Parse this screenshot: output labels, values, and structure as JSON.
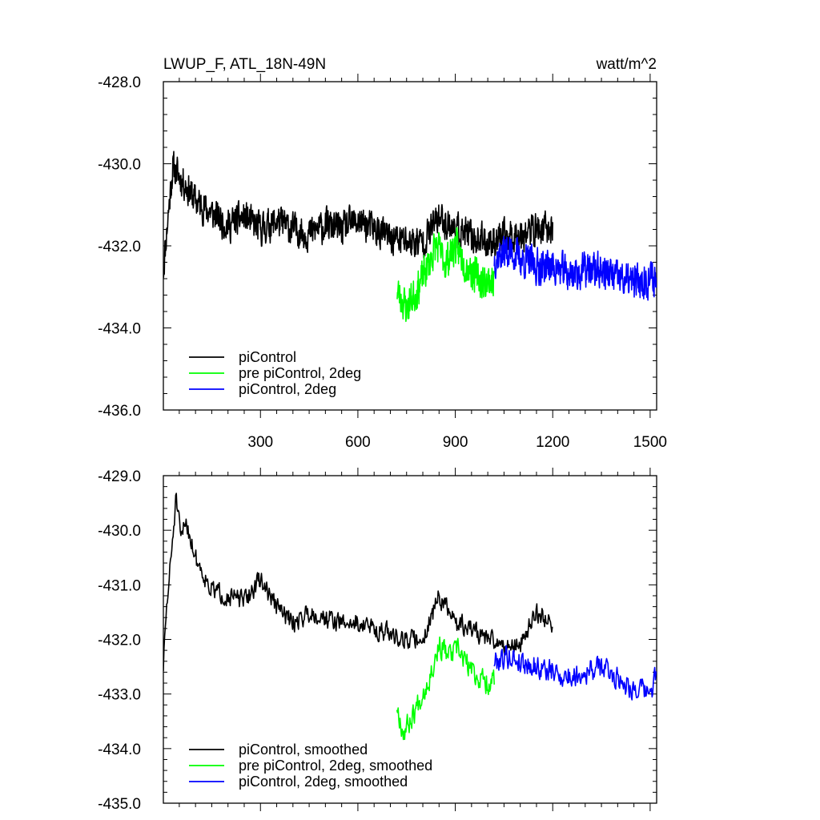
{
  "figure": {
    "title": "LWUP_F, ATL_18N-49N",
    "units": "watt/m^2"
  },
  "chart_data": [
    {
      "type": "line",
      "title": "LWUP_F, ATL_18N-49N",
      "units_label": "watt/m^2",
      "xlabel": "",
      "ylabel": "",
      "xlim": [
        1,
        1520
      ],
      "ylim": [
        -436.0,
        -428.0
      ],
      "x_ticks": [
        300,
        600,
        900,
        1200,
        1500
      ],
      "y_ticks": [
        -428.0,
        -430.0,
        -432.0,
        -434.0,
        -436.0
      ],
      "y_tick_labels": [
        "-428.0",
        "-430.0",
        "-432.0",
        "-434.0",
        "-436.0"
      ],
      "grid": false,
      "legend_position": "bottom-left",
      "series": [
        {
          "name": "piControl",
          "color": "#000000",
          "x_start": 1,
          "x_end": 1200,
          "step": 1,
          "noise": 0.55,
          "seed": 11,
          "anchors": [
            [
              1,
              -432.6
            ],
            [
              15,
              -431.3
            ],
            [
              30,
              -430.1
            ],
            [
              60,
              -430.4
            ],
            [
              100,
              -430.9
            ],
            [
              150,
              -431.2
            ],
            [
              200,
              -431.5
            ],
            [
              250,
              -431.3
            ],
            [
              300,
              -431.6
            ],
            [
              350,
              -431.4
            ],
            [
              400,
              -431.6
            ],
            [
              450,
              -431.7
            ],
            [
              500,
              -431.5
            ],
            [
              550,
              -431.6
            ],
            [
              600,
              -431.4
            ],
            [
              650,
              -431.6
            ],
            [
              700,
              -431.8
            ],
            [
              750,
              -431.9
            ],
            [
              800,
              -431.9
            ],
            [
              850,
              -431.3
            ],
            [
              900,
              -431.6
            ],
            [
              950,
              -431.8
            ],
            [
              1000,
              -431.9
            ],
            [
              1050,
              -431.8
            ],
            [
              1100,
              -431.7
            ],
            [
              1150,
              -431.6
            ],
            [
              1200,
              -431.6
            ]
          ]
        },
        {
          "name": "pre piControl, 2deg",
          "color": "#00ff00",
          "x_start": 720,
          "x_end": 1020,
          "step": 1,
          "noise": 0.6,
          "seed": 23,
          "anchors": [
            [
              720,
              -433.1
            ],
            [
              750,
              -433.5
            ],
            [
              780,
              -433.1
            ],
            [
              810,
              -432.6
            ],
            [
              840,
              -432.0
            ],
            [
              870,
              -432.4
            ],
            [
              900,
              -432.0
            ],
            [
              930,
              -432.4
            ],
            [
              960,
              -432.7
            ],
            [
              990,
              -432.9
            ],
            [
              1020,
              -432.8
            ]
          ]
        },
        {
          "name": "piControl, 2deg",
          "color": "#0000ff",
          "x_start": 1020,
          "x_end": 1520,
          "step": 1,
          "noise": 0.6,
          "seed": 37,
          "anchors": [
            [
              1020,
              -432.3
            ],
            [
              1060,
              -432.1
            ],
            [
              1100,
              -432.3
            ],
            [
              1150,
              -432.5
            ],
            [
              1200,
              -432.5
            ],
            [
              1250,
              -432.7
            ],
            [
              1300,
              -432.6
            ],
            [
              1350,
              -432.6
            ],
            [
              1400,
              -432.8
            ],
            [
              1450,
              -432.9
            ],
            [
              1500,
              -432.8
            ],
            [
              1520,
              -432.8
            ]
          ]
        }
      ]
    },
    {
      "type": "line",
      "title": "",
      "xlabel": "",
      "ylabel": "",
      "xlim": [
        1,
        1520
      ],
      "ylim": [
        -435.0,
        -429.0
      ],
      "x_ticks": [
        300,
        600,
        900,
        1200,
        1500
      ],
      "y_ticks": [
        -429.0,
        -430.0,
        -431.0,
        -432.0,
        -433.0,
        -434.0,
        -435.0
      ],
      "y_tick_labels": [
        "-429.0",
        "-430.0",
        "-431.0",
        "-432.0",
        "-433.0",
        "-434.0",
        "-435.0"
      ],
      "grid": false,
      "legend_position": "bottom-left",
      "series": [
        {
          "name": "piControl, smoothed",
          "color": "#000000",
          "x_start": 1,
          "x_end": 1200,
          "step": 2,
          "noise": 0.25,
          "seed": 51,
          "anchors": [
            [
              1,
              -432.5
            ],
            [
              10,
              -431.5
            ],
            [
              25,
              -430.5
            ],
            [
              40,
              -429.4
            ],
            [
              55,
              -430.2
            ],
            [
              70,
              -429.8
            ],
            [
              100,
              -430.5
            ],
            [
              150,
              -431.1
            ],
            [
              200,
              -431.2
            ],
            [
              250,
              -431.3
            ],
            [
              300,
              -430.9
            ],
            [
              350,
              -431.4
            ],
            [
              400,
              -431.7
            ],
            [
              450,
              -431.5
            ],
            [
              500,
              -431.6
            ],
            [
              550,
              -431.7
            ],
            [
              600,
              -431.7
            ],
            [
              650,
              -431.8
            ],
            [
              700,
              -431.9
            ],
            [
              750,
              -432.0
            ],
            [
              800,
              -432.0
            ],
            [
              850,
              -431.2
            ],
            [
              900,
              -431.7
            ],
            [
              950,
              -431.8
            ],
            [
              1000,
              -432.0
            ],
            [
              1050,
              -432.1
            ],
            [
              1100,
              -432.1
            ],
            [
              1150,
              -431.5
            ],
            [
              1200,
              -431.7
            ]
          ]
        },
        {
          "name": "pre piControl, 2deg, smoothed",
          "color": "#00ff00",
          "x_start": 720,
          "x_end": 1020,
          "step": 2,
          "noise": 0.3,
          "seed": 67,
          "anchors": [
            [
              720,
              -433.2
            ],
            [
              740,
              -433.7
            ],
            [
              760,
              -433.5
            ],
            [
              790,
              -433.1
            ],
            [
              820,
              -432.7
            ],
            [
              850,
              -432.1
            ],
            [
              880,
              -432.3
            ],
            [
              910,
              -432.2
            ],
            [
              940,
              -432.5
            ],
            [
              970,
              -432.7
            ],
            [
              1000,
              -432.8
            ],
            [
              1020,
              -432.7
            ]
          ]
        },
        {
          "name": "piControl, 2deg, smoothed",
          "color": "#0000ff",
          "x_start": 1020,
          "x_end": 1520,
          "step": 2,
          "noise": 0.3,
          "seed": 79,
          "anchors": [
            [
              1020,
              -432.4
            ],
            [
              1060,
              -432.3
            ],
            [
              1100,
              -432.4
            ],
            [
              1150,
              -432.5
            ],
            [
              1200,
              -432.6
            ],
            [
              1250,
              -432.7
            ],
            [
              1300,
              -432.6
            ],
            [
              1350,
              -432.5
            ],
            [
              1400,
              -432.7
            ],
            [
              1450,
              -432.9
            ],
            [
              1500,
              -433.0
            ],
            [
              1520,
              -432.6
            ]
          ]
        }
      ]
    }
  ]
}
